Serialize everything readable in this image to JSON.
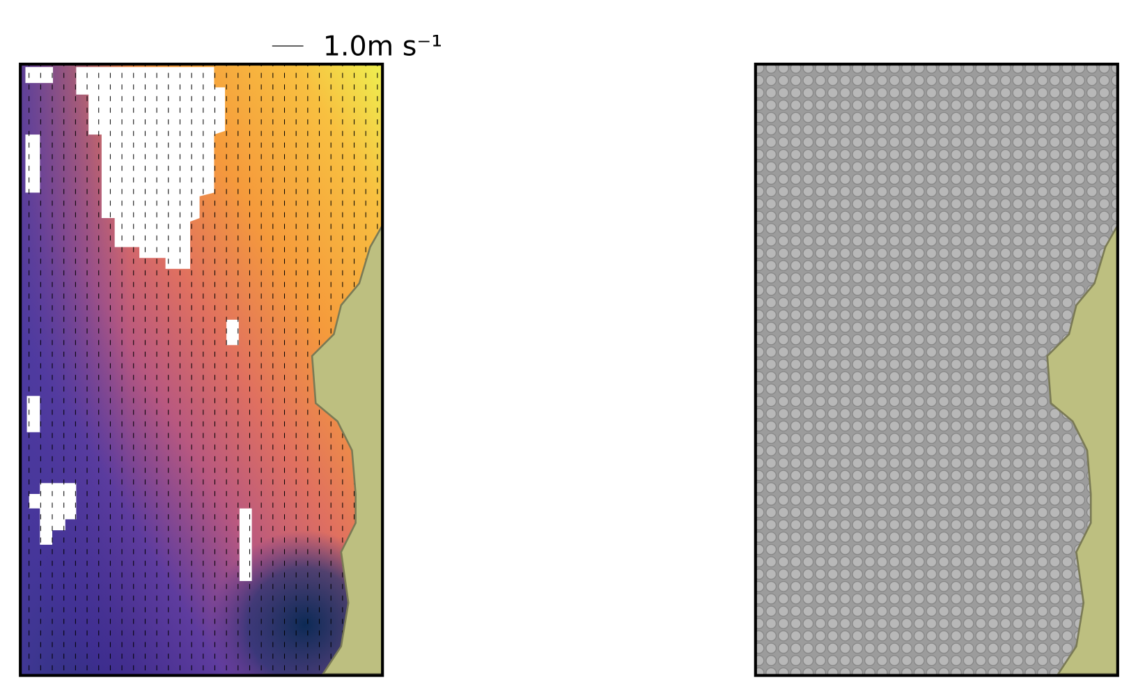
{
  "chart_data": {
    "type": "quiver",
    "quiver_key": {
      "value": 1.0,
      "label": "1.0m s⁻¹"
    }
  }
}
